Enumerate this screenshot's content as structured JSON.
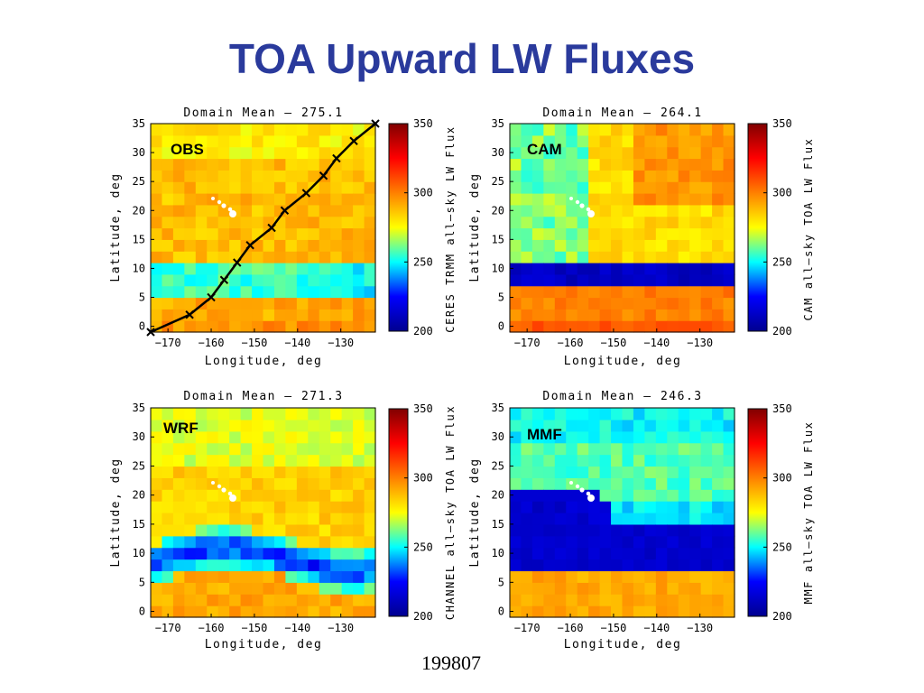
{
  "slide": {
    "title": "TOA Upward LW Fluxes",
    "footer": "199807"
  },
  "colormap": {
    "name": "jet",
    "stops": [
      "#00008f",
      "#0000ff",
      "#00ffff",
      "#ffff00",
      "#ff8000",
      "#ff0000",
      "#800000"
    ]
  },
  "chart_data": [
    {
      "type": "heatmap",
      "label": "OBS",
      "title": "Domain Mean – 275.1",
      "xlabel": "Longitude, deg",
      "ylabel": "Latitude, deg",
      "colorbar_label": "CERES TRMM all–sky LW Flux",
      "xlim": [
        -174,
        -122
      ],
      "ylim": [
        -1,
        35
      ],
      "xticks": [
        -170,
        -160,
        -150,
        -140,
        -130
      ],
      "yticks": [
        0,
        5,
        10,
        15,
        20,
        25,
        30,
        35
      ],
      "clim": [
        200,
        350
      ],
      "cticks": [
        200,
        250,
        300,
        350
      ],
      "domain_mean": 275.1,
      "transect": {
        "x": [
          -174,
          -165,
          -160,
          -157,
          -154,
          -151,
          -146,
          -143,
          -138,
          -134,
          -131,
          -127,
          -122
        ],
        "y": [
          -1,
          2,
          5,
          8,
          11,
          14,
          17,
          20,
          23,
          26,
          29,
          32,
          35
        ]
      }
    },
    {
      "type": "heatmap",
      "label": "CAM",
      "title": "Domain Mean – 264.1",
      "xlabel": "Longitude, deg",
      "ylabel": "Latitude, deg",
      "colorbar_label": "CAM all–sky TOA LW Flux",
      "xlim": [
        -174,
        -122
      ],
      "ylim": [
        -1,
        35
      ],
      "xticks": [
        -170,
        -160,
        -150,
        -140,
        -130
      ],
      "yticks": [
        0,
        5,
        10,
        15,
        20,
        25,
        30,
        35
      ],
      "clim": [
        200,
        350
      ],
      "cticks": [
        200,
        250,
        300,
        350
      ],
      "domain_mean": 264.1
    },
    {
      "type": "heatmap",
      "label": "WRF",
      "title": "Domain Mean – 271.3",
      "xlabel": "Longitude, deg",
      "ylabel": "Latitude, deg",
      "colorbar_label": "CHANNEL all–sky TOA LW Flux",
      "xlim": [
        -174,
        -122
      ],
      "ylim": [
        -1,
        35
      ],
      "xticks": [
        -170,
        -160,
        -150,
        -140,
        -130
      ],
      "yticks": [
        0,
        5,
        10,
        15,
        20,
        25,
        30,
        35
      ],
      "clim": [
        200,
        350
      ],
      "cticks": [
        200,
        250,
        300,
        350
      ],
      "domain_mean": 271.3
    },
    {
      "type": "heatmap",
      "label": "MMF",
      "title": "Domain Mean – 246.3",
      "xlabel": "Longitude, deg",
      "ylabel": "Latitude, deg",
      "colorbar_label": "MMF all–sky TOA LW Flux",
      "xlim": [
        -174,
        -122
      ],
      "ylim": [
        -1,
        35
      ],
      "xticks": [
        -170,
        -160,
        -150,
        -140,
        -130
      ],
      "yticks": [
        0,
        5,
        10,
        15,
        20,
        25,
        30,
        35
      ],
      "clim": [
        200,
        350
      ],
      "cticks": [
        200,
        250,
        300,
        350
      ],
      "domain_mean": 246.3
    }
  ]
}
